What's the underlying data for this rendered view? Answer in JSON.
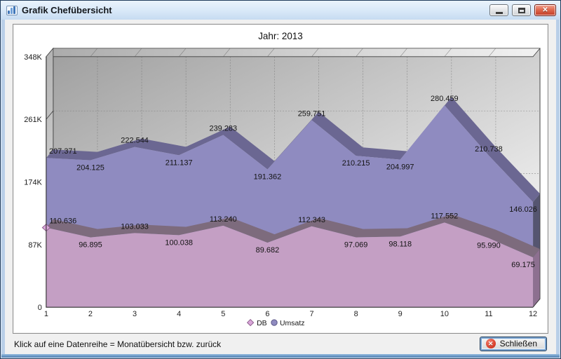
{
  "window": {
    "title": "Grafik Chefübersicht",
    "controls": {
      "close_glyph": "✕"
    }
  },
  "chart_data": {
    "type": "area",
    "variant": "3d-overlapping-areas",
    "title": "Jahr: 2013",
    "categories": [
      "1",
      "2",
      "3",
      "4",
      "5",
      "6",
      "7",
      "8",
      "9",
      "10",
      "11",
      "12"
    ],
    "xlabel": "",
    "ylabel": "",
    "ylim": [
      0,
      348000
    ],
    "grid": true,
    "legend_position": "bottom-center",
    "y_ticks": [
      {
        "value": 348000,
        "label": "348K"
      },
      {
        "value": 261000,
        "label": "261K"
      },
      {
        "value": 174000,
        "label": "174K"
      },
      {
        "value": 87000,
        "label": "87K"
      },
      {
        "value": 0,
        "label": "0"
      }
    ],
    "series": [
      {
        "name": "DB",
        "marker": "diamond",
        "values": [
          110636,
          96895,
          103033,
          100038,
          113240,
          89682,
          112343,
          97069,
          98118,
          117552,
          95990,
          69175
        ],
        "labels": [
          "110.636",
          "96.895",
          "103.033",
          "100.038",
          "113.240",
          "89.682",
          "112.343",
          "97.069",
          "98.118",
          "117.552",
          "95.990",
          "69.175"
        ],
        "label_pos": [
          "above",
          "below",
          "above",
          "below",
          "above",
          "below",
          "above",
          "below",
          "below",
          "above",
          "below",
          "below"
        ],
        "colors": {
          "fill": "#c49fc4",
          "ridge": "#7d6b7d",
          "side": "#8d7090",
          "marker_fill": "#d9a6d9",
          "marker_stroke": "#8d5e8d"
        }
      },
      {
        "name": "Umsatz",
        "marker": "circle",
        "values": [
          207371,
          204125,
          222544,
          211137,
          239283,
          191362,
          259751,
          210215,
          204997,
          280459,
          210738,
          146026
        ],
        "labels": [
          "207.371",
          "204.125",
          "222.544",
          "211.137",
          "239.283",
          "191.362",
          "259.751",
          "210.215",
          "204.997",
          "280.459",
          "210.738",
          "146.026"
        ],
        "label_pos": [
          "above",
          "below",
          "above",
          "below",
          "above",
          "below",
          "above",
          "below",
          "below",
          "above",
          "above",
          "below"
        ],
        "colors": {
          "fill": "#8f8bc0",
          "ridge": "#6b6792",
          "side": "#555570",
          "marker_fill": "#8f8bc0",
          "marker_stroke": "#5f5b8a"
        }
      }
    ]
  },
  "statusbar": {
    "hint": "Klick auf eine Datenreihe = Monatübersicht bzw. zurück",
    "close_button": {
      "label": "Schließen",
      "icon_glyph": "✕"
    }
  }
}
